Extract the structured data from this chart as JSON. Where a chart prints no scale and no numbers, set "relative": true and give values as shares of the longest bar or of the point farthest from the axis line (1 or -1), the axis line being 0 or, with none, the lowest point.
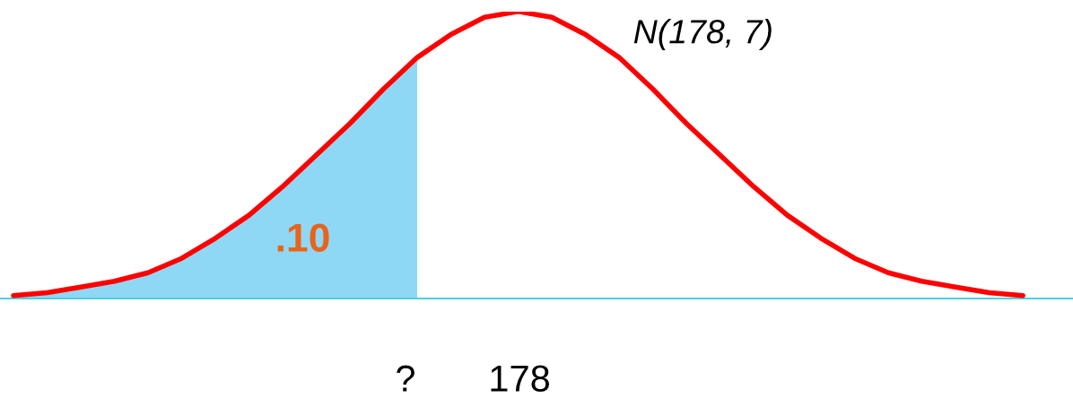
{
  "chart_data": {
    "type": "line",
    "relative": true,
    "categories": [
      null,
      null,
      null,
      null,
      null,
      null,
      null,
      null,
      null,
      null,
      null,
      null,
      null,
      null,
      null,
      null,
      null,
      null,
      null,
      null,
      null,
      null,
      null,
      null,
      null,
      null,
      null,
      null,
      null,
      null,
      null
    ],
    "series": [
      {
        "type": "area",
        "color": "#8fd8f5",
        "values": [
          0.01,
          0.02,
          0.04,
          0.06,
          0.09,
          0.14,
          0.21,
          0.29,
          0.39,
          0.5,
          0.61,
          0.73,
          0.84,
          null,
          null,
          null,
          null,
          null,
          null,
          null,
          null,
          null,
          null,
          null,
          null,
          null,
          null,
          null,
          null,
          null,
          null
        ]
      },
      {
        "color": "#ff0000",
        "values": [
          0.01,
          0.02,
          0.04,
          0.06,
          0.09,
          0.14,
          0.21,
          0.29,
          0.39,
          0.5,
          0.61,
          0.73,
          0.84,
          0.92,
          0.98,
          1.0,
          0.98,
          0.92,
          0.84,
          0.73,
          0.61,
          0.5,
          0.39,
          0.29,
          0.21,
          0.14,
          0.09,
          0.06,
          0.04,
          0.02,
          0.01
        ]
      }
    ],
    "annotations": [
      "N(178, 7)",
      ".10",
      "?",
      "178"
    ],
    "grid": false,
    "legend": false
  }
}
